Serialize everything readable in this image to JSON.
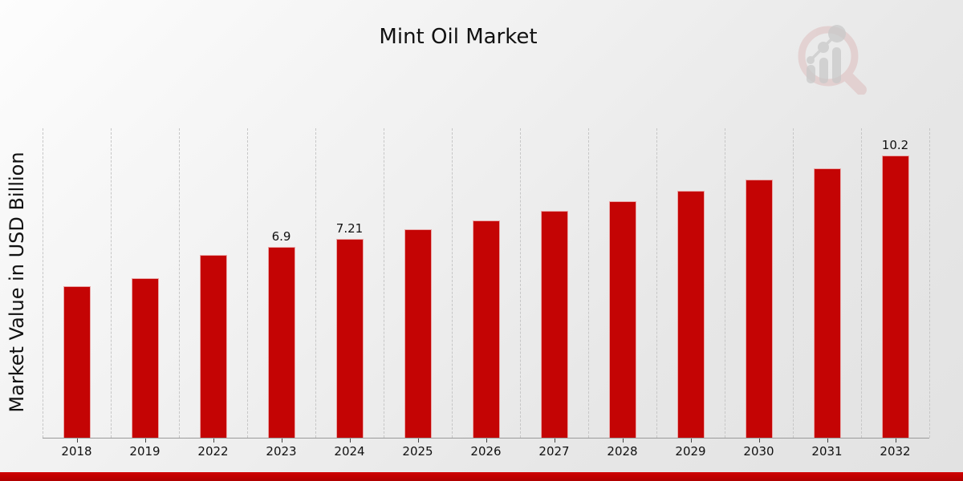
{
  "header": {
    "title": "Mint Oil Market"
  },
  "chart_data": {
    "type": "bar",
    "title": "Mint Oil Market",
    "xlabel": "",
    "ylabel": "Market Value in USD Billion",
    "categories": [
      "2018",
      "2019",
      "2022",
      "2023",
      "2024",
      "2025",
      "2026",
      "2027",
      "2028",
      "2029",
      "2030",
      "2031",
      "2032"
    ],
    "values": [
      5.48,
      5.77,
      6.61,
      6.9,
      7.21,
      7.53,
      7.86,
      8.21,
      8.57,
      8.95,
      9.35,
      9.76,
      10.2
    ],
    "shown_value_labels": {
      "2023": "6.9",
      "2024": "7.21",
      "2032": "10.2"
    },
    "ylim": [
      0,
      11.2
    ],
    "grid": "vertical dashed lines between categories, no y-axis ticks or labels",
    "legend": "none",
    "bar_color": "#c40404",
    "gridline_color": "#c6c6c6",
    "axis_line_color": "#9a9a9a",
    "text_color": "#111111"
  },
  "branding": {
    "logo_icon": "magnifier-bar-chart-watermark",
    "ring_color": "#dcb9b9",
    "glyph_color": "#cccccc"
  },
  "footer": {
    "accent_strip_color": "#c00000"
  }
}
